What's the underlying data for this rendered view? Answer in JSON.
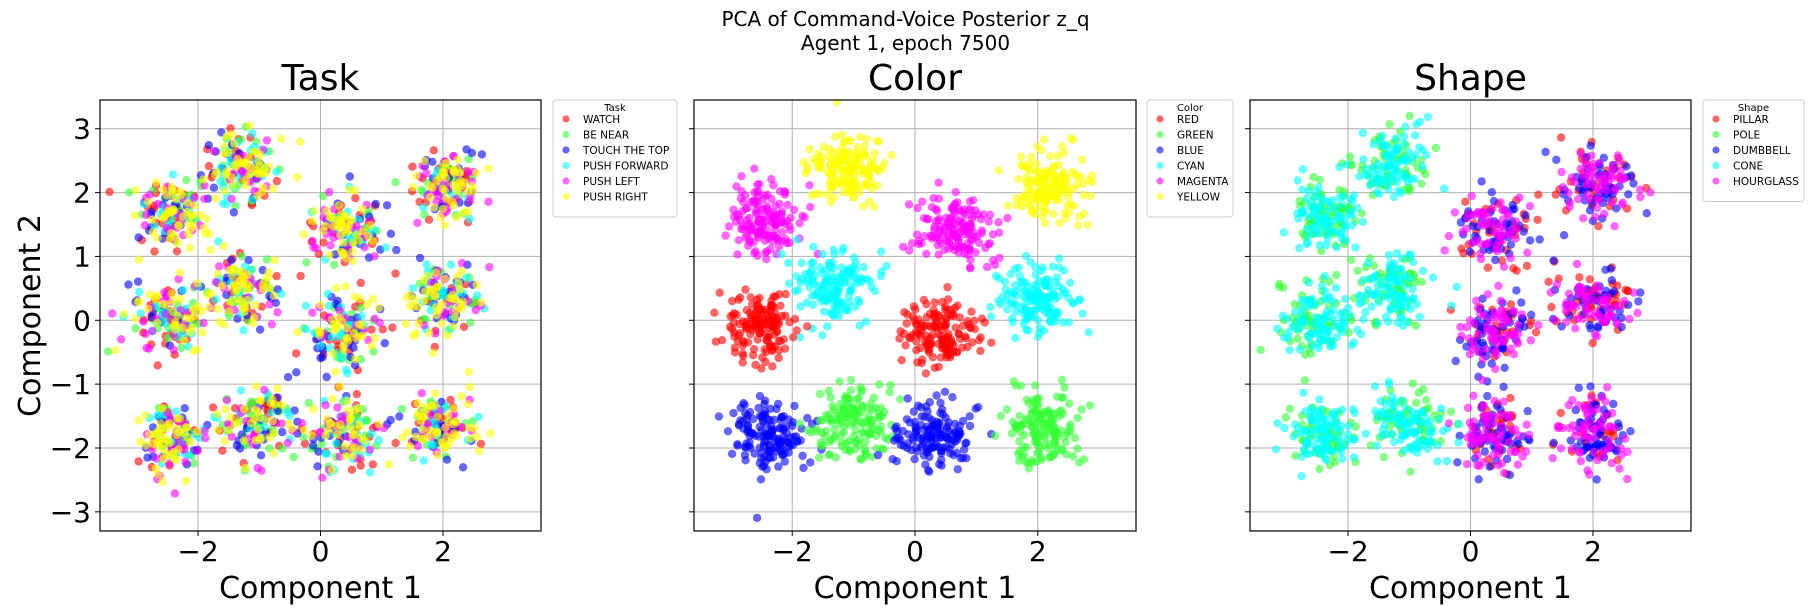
{
  "figure": {
    "title_line1": "PCA of Command-Voice Posterior z_q",
    "title_line2": "Agent 1, epoch 7500"
  },
  "chart_data": [
    {
      "type": "scatter",
      "title": "Task",
      "xlabel": "Component 1",
      "ylabel": "Component 2",
      "xlim": [
        -3.6,
        3.6
      ],
      "ylim": [
        -3.3,
        3.45
      ],
      "xticks": [
        -2,
        0,
        2
      ],
      "yticks": [
        3,
        2,
        1,
        0,
        -1,
        -2,
        -3
      ],
      "grid": true,
      "legend": {
        "title": "Task",
        "placement": "outside-right",
        "entries": [
          "WATCH",
          "BE NEAR",
          "TOUCH THE TOP",
          "PUSH FORWARD",
          "PUSH LEFT",
          "PUSH RIGHT"
        ]
      },
      "colors": [
        "#ff0000",
        "#33ff33",
        "#0000ff",
        "#00ffff",
        "#ff00ff",
        "#ffff00"
      ],
      "cluster_centers": [
        [
          -2.4,
          1.7
        ],
        [
          -1.3,
          2.4
        ],
        [
          0.4,
          1.4
        ],
        [
          2.1,
          2.1
        ],
        [
          -2.5,
          0.0
        ],
        [
          -1.3,
          0.5
        ],
        [
          0.4,
          -0.2
        ],
        [
          2.0,
          0.3
        ],
        [
          -2.4,
          -1.8
        ],
        [
          -1.0,
          -1.6
        ],
        [
          0.4,
          -1.8
        ],
        [
          2.0,
          -1.7
        ]
      ],
      "cluster_color_mix": "all six categories overlap in every cluster; PUSH RIGHT (yellow) drawn on top",
      "points_per_cluster": 150
    },
    {
      "type": "scatter",
      "title": "Color",
      "xlabel": "Component 1",
      "ylabel": "",
      "xlim": [
        -3.6,
        3.6
      ],
      "ylim": [
        -3.3,
        3.45
      ],
      "xticks": [
        -2,
        0,
        2
      ],
      "yticks": [
        3,
        2,
        1,
        0,
        -1,
        -2,
        -3
      ],
      "grid": true,
      "legend": {
        "title": "Color",
        "placement": "outside-right",
        "entries": [
          "RED",
          "GREEN",
          "BLUE",
          "CYAN",
          "MAGENTA",
          "YELLOW"
        ]
      },
      "colors": [
        "#ff0000",
        "#33ff33",
        "#0000ff",
        "#00ffff",
        "#ff00ff",
        "#ffff00"
      ],
      "clusters": [
        {
          "center": [
            -1.1,
            2.4
          ],
          "category": 5
        },
        {
          "center": [
            2.2,
            2.1
          ],
          "category": 5
        },
        {
          "center": [
            -2.4,
            1.6
          ],
          "category": 4
        },
        {
          "center": [
            0.6,
            1.4
          ],
          "category": 4
        },
        {
          "center": [
            -1.3,
            0.5
          ],
          "category": 3
        },
        {
          "center": [
            2.0,
            0.3
          ],
          "category": 3
        },
        {
          "center": [
            -2.5,
            -0.1
          ],
          "category": 0
        },
        {
          "center": [
            0.4,
            -0.2
          ],
          "category": 0
        },
        {
          "center": [
            -2.4,
            -1.8
          ],
          "category": 2
        },
        {
          "center": [
            -1.0,
            -1.6
          ],
          "category": 1
        },
        {
          "center": [
            0.3,
            -1.8
          ],
          "category": 2
        },
        {
          "center": [
            2.1,
            -1.7
          ],
          "category": 1
        }
      ],
      "points_per_cluster": 150
    },
    {
      "type": "scatter",
      "title": "Shape",
      "xlabel": "Component 1",
      "ylabel": "",
      "xlim": [
        -3.6,
        3.6
      ],
      "ylim": [
        -3.3,
        3.45
      ],
      "xticks": [
        -2,
        0,
        2
      ],
      "yticks": [
        3,
        2,
        1,
        0,
        -1,
        -2,
        -3
      ],
      "grid": true,
      "legend": {
        "title": "Shape",
        "placement": "outside-right",
        "entries": [
          "PILLAR",
          "POLE",
          "DUMBBELL",
          "CONE",
          "HOURGLASS"
        ]
      },
      "colors": [
        "#ff0000",
        "#33ff33",
        "#0000ff",
        "#00ffff",
        "#ff00ff"
      ],
      "clusters": [
        {
          "center": [
            -2.4,
            1.6
          ],
          "categories": [
            1,
            3
          ]
        },
        {
          "center": [
            -1.3,
            2.4
          ],
          "categories": [
            1,
            3
          ]
        },
        {
          "center": [
            -1.3,
            0.5
          ],
          "categories": [
            1,
            3
          ]
        },
        {
          "center": [
            -2.5,
            0.0
          ],
          "categories": [
            1,
            3
          ]
        },
        {
          "center": [
            -2.4,
            -1.8
          ],
          "categories": [
            1,
            3
          ]
        },
        {
          "center": [
            -1.0,
            -1.6
          ],
          "categories": [
            1,
            3
          ]
        },
        {
          "center": [
            0.4,
            1.4
          ],
          "categories": [
            0,
            2,
            4
          ]
        },
        {
          "center": [
            2.1,
            2.1
          ],
          "categories": [
            0,
            2,
            4
          ]
        },
        {
          "center": [
            0.4,
            -0.2
          ],
          "categories": [
            0,
            2,
            4
          ]
        },
        {
          "center": [
            2.0,
            0.3
          ],
          "categories": [
            0,
            2,
            4
          ]
        },
        {
          "center": [
            0.4,
            -1.8
          ],
          "categories": [
            0,
            2,
            4
          ]
        },
        {
          "center": [
            2.0,
            -1.7
          ],
          "categories": [
            0,
            2,
            4
          ]
        }
      ],
      "points_per_cluster": 150
    }
  ]
}
